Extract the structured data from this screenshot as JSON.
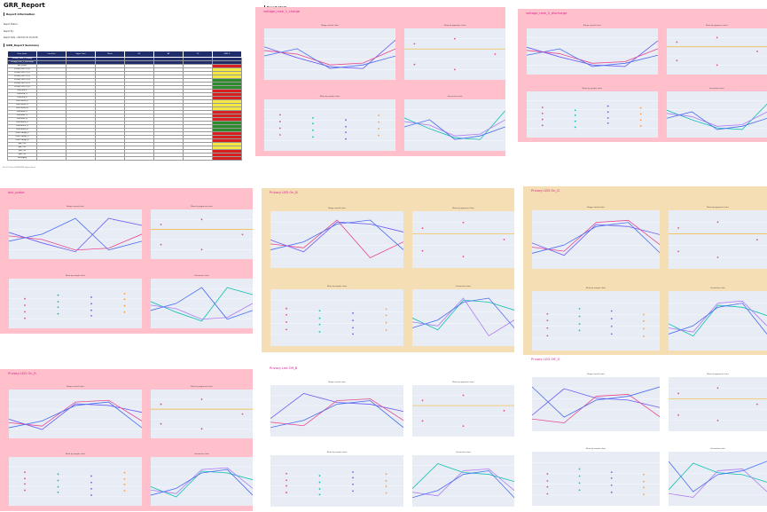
{
  "report": {
    "title": "GRR_Report",
    "info_heading": "Report information",
    "info_lines": [
      "Report Station :",
      "Report By :",
      "Report Date : 2023-02-02 15:02:48"
    ],
    "summary_heading": "GRR_Report Summary",
    "columns": [
      "Item name",
      "Low limit",
      "Upper limit",
      "Mean",
      "EV",
      "AV",
      "TV",
      "GRR %"
    ],
    "rows": [
      [
        "voltage_rose_1_charge",
        "",
        "",
        "",
        "",
        "",
        "",
        ""
      ],
      [
        "voltage_rose_2_discharge",
        "",
        "",
        "",
        "",
        "",
        "",
        ""
      ],
      [
        "adc_probe",
        "",
        "",
        "",
        "",
        "",
        "",
        ""
      ],
      [
        "Privacy LED On_B",
        "",
        "",
        "",
        "",
        "",
        "",
        ""
      ],
      [
        "Privacy LED On_G",
        "",
        "",
        "",
        "",
        "",
        "",
        ""
      ],
      [
        "Privacy LED On_R",
        "",
        "",
        "",
        "",
        "",
        "",
        ""
      ],
      [
        "Privacy LED Off_B",
        "",
        "",
        "",
        "",
        "",
        "",
        ""
      ],
      [
        "Privacy LED Off_G",
        "",
        "",
        "",
        "",
        "",
        "",
        ""
      ],
      [
        "Privacy LED Off_R",
        "",
        "",
        "",
        "",
        "",
        "",
        ""
      ],
      [
        "RGB Red_R",
        "",
        "",
        "",
        "",
        "",
        "",
        ""
      ],
      [
        "RGB Red_G",
        "",
        "",
        "",
        "",
        "",
        "",
        ""
      ],
      [
        "RGB Red_B",
        "",
        "",
        "",
        "",
        "",
        "",
        ""
      ],
      [
        "RGB Green_R",
        "",
        "",
        "",
        "",
        "",
        "",
        ""
      ],
      [
        "RGB Green_G",
        "",
        "",
        "",
        "",
        "",
        "",
        ""
      ],
      [
        "RGB Green_B",
        "",
        "",
        "",
        "",
        "",
        "",
        ""
      ],
      [
        "RGB Blue_R",
        "",
        "",
        "",
        "",
        "",
        "",
        ""
      ],
      [
        "RGB Blue_G",
        "",
        "",
        "",
        "",
        "",
        "",
        ""
      ],
      [
        "RGB Blue_B",
        "",
        "",
        "",
        "",
        "",
        "",
        ""
      ],
      [
        "RGB White_R",
        "",
        "",
        "",
        "",
        "",
        "",
        ""
      ],
      [
        "RGB White_G",
        "",
        "",
        "",
        "",
        "",
        "",
        ""
      ],
      [
        "RGB White_B",
        "",
        "",
        "",
        "",
        "",
        "",
        ""
      ],
      [
        "RGB Orange_R",
        "",
        "",
        "",
        "",
        "",
        "",
        ""
      ],
      [
        "RGB Orange_G",
        "",
        "",
        "",
        "",
        "",
        "",
        ""
      ],
      [
        "RGB Orange_B",
        "",
        "",
        "",
        "",
        "",
        "",
        ""
      ],
      [
        "pwr_OFF",
        "",
        "",
        "",
        "",
        "",
        "",
        ""
      ],
      [
        "pwr_OFF",
        "",
        "",
        "",
        "",
        "",
        "",
        ""
      ],
      [
        "pwr_ON",
        "",
        "",
        "",
        "",
        "",
        "",
        ""
      ],
      [
        "pwr_ON",
        "",
        "",
        "",
        "",
        "",
        "",
        ""
      ],
      [
        "Packaging",
        "",
        "",
        "",
        "",
        "",
        "",
        ""
      ]
    ],
    "grr_status": [
      "bad",
      "bad",
      "bad",
      "warn",
      "warn",
      "warn",
      "ok",
      "ok",
      "ok",
      "bad",
      "bad",
      "bad",
      "warn",
      "warn",
      "warn",
      "bad",
      "bad",
      "bad",
      "ok",
      "ok",
      "ok",
      "bad",
      "bad",
      "bad",
      "warn",
      "warn",
      "bad",
      "bad",
      "bad"
    ]
  },
  "report_chart": {
    "heading": "Report Chart"
  },
  "charts": [
    {
      "name": "voltage_rose_1_charge",
      "bg": "pink"
    },
    {
      "name": "voltage_rose_2_discharge",
      "bg": "pink"
    },
    {
      "name": "adc_probe",
      "bg": "pink"
    },
    {
      "name": "Privacy LED On_B",
      "bg": "tan"
    },
    {
      "name": "Privacy LED On_G",
      "bg": "tan"
    },
    {
      "name": "Privacy LED On_R",
      "bg": "pink"
    },
    {
      "name": "Privacy Led Off_B",
      "bg": "white"
    },
    {
      "name": "Privacy LED Off_G",
      "bg": "white"
    }
  ],
  "panel_titles": [
    "Range control chart",
    "Mean by appraiser chart",
    "Mean by sample chart",
    "Interaction chart"
  ],
  "footer": {
    "left": "file:///C:/Users/GRR/GRR_Report.html",
    "mid": "report",
    "right": "2023"
  }
}
